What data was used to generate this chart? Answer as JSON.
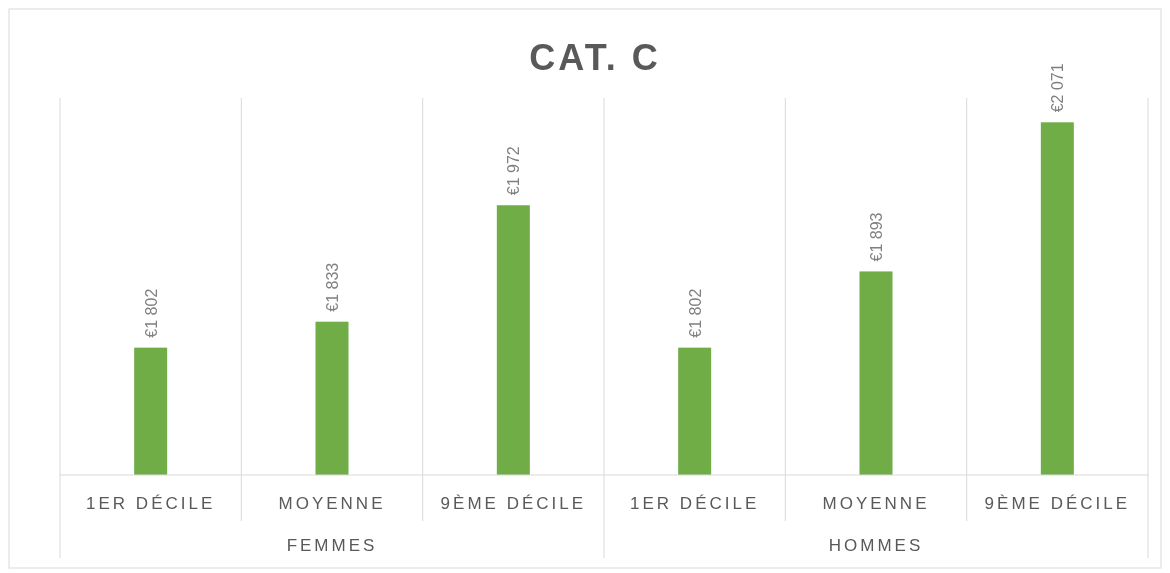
{
  "chart_data": {
    "type": "bar",
    "title": "CAT. C",
    "categories": [
      "1ER DÉCILE",
      "MOYENNE",
      "9ÈME DÉCILE",
      "1ER DÉCILE",
      "MOYENNE",
      "9ÈME DÉCILE"
    ],
    "values": [
      1802,
      1833,
      1972,
      1802,
      1893,
      2071
    ],
    "value_labels": [
      "€1 802",
      "€1 833",
      "€1 972",
      "€1 802",
      "€1 893",
      "€2 071"
    ],
    "color": "#70ad47",
    "ylim": [
      1650,
      2100
    ],
    "grid": "x",
    "annotations": [
      "FEMMES",
      "HOMMES"
    ]
  }
}
